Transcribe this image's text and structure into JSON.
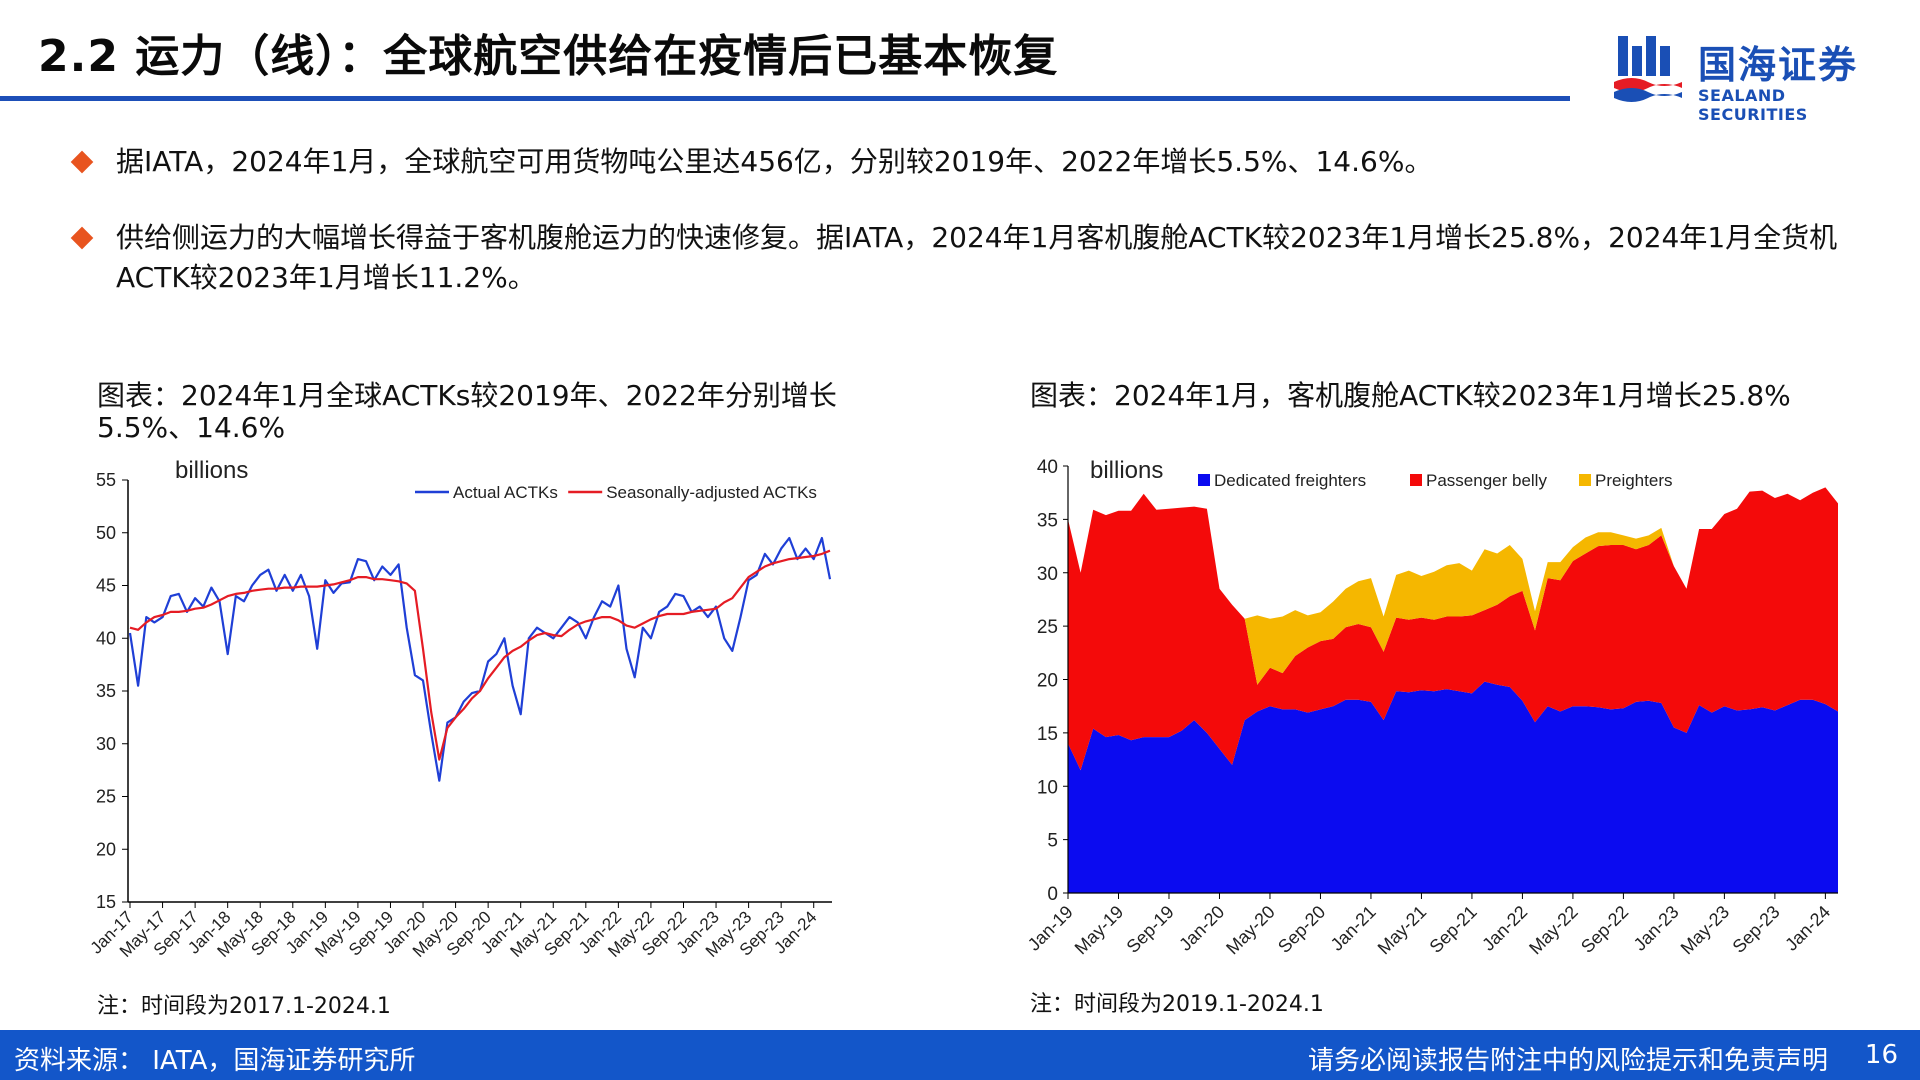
{
  "header": {
    "title": "2.2 运力（线）：全球航空供给在疫情后已基本恢复",
    "logo_cn": "国海证券",
    "logo_en": "SEALAND SECURITIES"
  },
  "bullets": [
    {
      "text": "据IATA，2024年1月，全球航空可用货物吨公里达456亿，分别较2019年、2022年增长5.5%、14.6%。"
    },
    {
      "text": "供给侧运力的大幅增长得益于客机腹舱运力的快速修复。据IATA，2024年1月客机腹舱ACTK较2023年1月增长25.8%，2024年1月全货机ACTK较2023年1月增长11.2%。"
    }
  ],
  "left_chart": {
    "caption_line1": "图表：2024年1月全球ACTKs较2019年、2022年分别增长",
    "caption_line2": "5.5%、14.6%",
    "note": "注：时间段为2017.1-2024.1"
  },
  "right_chart": {
    "caption": "图表：2024年1月，客机腹舱ACTK较2023年1月增长25.8%",
    "note": "注：时间段为2019.1-2024.1"
  },
  "chart_data": [
    {
      "type": "line",
      "title": "",
      "ylabel": "billions",
      "xlabel": "",
      "ylim": [
        15,
        55
      ],
      "yticks": [
        15,
        20,
        25,
        30,
        35,
        40,
        45,
        50,
        55
      ],
      "grid": false,
      "legend_position": "top-right",
      "x_tick_labels": [
        "Jan-17",
        "May-17",
        "Sep-17",
        "Jan-18",
        "May-18",
        "Sep-18",
        "Jan-19",
        "May-19",
        "Sep-19",
        "Jan-20",
        "May-20",
        "Sep-20",
        "Jan-21",
        "May-21",
        "Sep-21",
        "Jan-22",
        "May-22",
        "Sep-22",
        "Jan-23",
        "May-23",
        "Sep-23",
        "Jan-24"
      ],
      "series": [
        {
          "name": "Actual ACTKs",
          "color": "#1f3fd6",
          "values": [
            40.5,
            35.5,
            42,
            41.5,
            42,
            44,
            44.2,
            42.5,
            43.8,
            43,
            44.8,
            43.5,
            38.5,
            44,
            43.5,
            45,
            46,
            46.5,
            44.5,
            46,
            44.5,
            46,
            44,
            39,
            45.5,
            44.3,
            45.2,
            45.3,
            47.5,
            47.3,
            45.5,
            46.8,
            46,
            47,
            41,
            36.5,
            36,
            31,
            26.5,
            32,
            32.5,
            34,
            34.8,
            35,
            37.8,
            38.5,
            40,
            35.5,
            32.8,
            40,
            41,
            40.5,
            40,
            41,
            42,
            41.5,
            40,
            42,
            43.5,
            43,
            45,
            39,
            36.3,
            41,
            40,
            42.5,
            43,
            44.2,
            44,
            42.5,
            43,
            42,
            43,
            40,
            38.8,
            42,
            45.5,
            46,
            48,
            47,
            48.5,
            49.5,
            47.5,
            48.5,
            47.5,
            49.5,
            45.6
          ]
        },
        {
          "name": "Seasonally-adjusted ACTKs",
          "color": "#e51c24",
          "values": [
            41,
            40.8,
            41.5,
            42,
            42.2,
            42.5,
            42.5,
            42.6,
            42.8,
            42.9,
            43.2,
            43.6,
            44,
            44.2,
            44.3,
            44.5,
            44.6,
            44.7,
            44.7,
            44.8,
            44.8,
            44.9,
            44.9,
            44.9,
            45,
            45.1,
            45.3,
            45.5,
            45.8,
            45.8,
            45.6,
            45.6,
            45.5,
            45.4,
            45.2,
            44.5,
            39,
            33,
            28.5,
            31.5,
            32.5,
            33.3,
            34.3,
            35,
            36.2,
            37.2,
            38.2,
            38.8,
            39.2,
            39.8,
            40.3,
            40.5,
            40.3,
            40.2,
            40.8,
            41.3,
            41.6,
            41.8,
            42,
            42,
            41.7,
            41.2,
            41,
            41.4,
            41.8,
            42.1,
            42.3,
            42.3,
            42.3,
            42.5,
            42.6,
            42.7,
            42.8,
            43.4,
            43.8,
            44.8,
            45.8,
            46.3,
            46.8,
            47.1,
            47.3,
            47.5,
            47.6,
            47.7,
            47.8,
            48,
            48.3
          ]
        }
      ]
    },
    {
      "type": "area",
      "stacked": true,
      "title": "",
      "ylabel": "billions",
      "xlabel": "",
      "ylim": [
        0,
        40
      ],
      "yticks": [
        0,
        5,
        10,
        15,
        20,
        25,
        30,
        35,
        40
      ],
      "grid": false,
      "legend_position": "top",
      "x_tick_labels": [
        "Jan-19",
        "May-19",
        "Sep-19",
        "Jan-20",
        "May-20",
        "Sep-20",
        "Jan-21",
        "May-21",
        "Sep-21",
        "Jan-22",
        "May-22",
        "Sep-22",
        "Jan-23",
        "May-23",
        "Sep-23",
        "Jan-24"
      ],
      "series": [
        {
          "name": "Dedicated freighters",
          "color": "#0b0bf0",
          "values": [
            14,
            11.5,
            15.4,
            14.6,
            14.8,
            14.3,
            14.6,
            14.6,
            14.6,
            15.2,
            16.2,
            15,
            13.5,
            12,
            16.2,
            17,
            17.5,
            17.2,
            17.2,
            16.9,
            17.2,
            17.5,
            18.1,
            18.1,
            17.9,
            16.2,
            18.9,
            18.8,
            19,
            18.9,
            19.1,
            18.9,
            18.7,
            19.8,
            19.5,
            19.3,
            18,
            16,
            17.5,
            17,
            17.5,
            17.5,
            17.4,
            17.2,
            17.3,
            17.9,
            18,
            17.8,
            15.5,
            15,
            17.6,
            16.9,
            17.5,
            17.1,
            17.2,
            17.4,
            17.1,
            17.6,
            18.1,
            18.1,
            17.7,
            17
          ]
        },
        {
          "name": "Passenger belly",
          "color": "#f40a0a",
          "values": [
            21,
            18.5,
            20.5,
            20.8,
            21,
            21.5,
            22.8,
            21.3,
            21.4,
            20.9,
            20,
            21,
            15,
            15,
            9.5,
            2.5,
            3.6,
            3.4,
            5,
            6.1,
            6.4,
            6.3,
            6.8,
            7.1,
            7,
            6.4,
            6.9,
            6.8,
            6.8,
            6.7,
            6.8,
            7,
            7.3,
            6.7,
            7.5,
            8.5,
            10.3,
            8.6,
            12,
            12.3,
            13.6,
            14.3,
            15.1,
            15.4,
            15.3,
            14.3,
            14.6,
            15.7,
            15.1,
            13.5,
            16.5,
            17.2,
            18,
            18.9,
            20.4,
            20.3,
            19.9,
            19.8,
            18.7,
            19.4,
            20.3,
            19.5
          ]
        },
        {
          "name": "Preighters",
          "color": "#f5b700",
          "values": [
            0,
            0,
            0,
            0,
            0,
            0,
            0,
            0,
            0,
            0,
            0,
            0,
            0,
            0,
            0,
            6.5,
            4.6,
            5.3,
            4.3,
            3,
            2.7,
            3.5,
            3.6,
            4,
            4.6,
            3.3,
            4,
            4.6,
            3.9,
            4.5,
            4.8,
            5,
            4.2,
            5.7,
            4.8,
            4.8,
            3,
            1.8,
            1.5,
            1.7,
            1.3,
            1.5,
            1.3,
            1.2,
            0.9,
            1,
            0.9,
            0.7,
            0,
            0,
            0,
            0,
            0,
            0,
            0,
            0,
            0,
            0,
            0,
            0,
            0,
            0
          ]
        }
      ]
    }
  ],
  "footer": {
    "source": "资料来源： IATA，国海证券研究所",
    "disclaimer": "请务必阅读报告附注中的风险提示和免责声明",
    "page": "16"
  }
}
